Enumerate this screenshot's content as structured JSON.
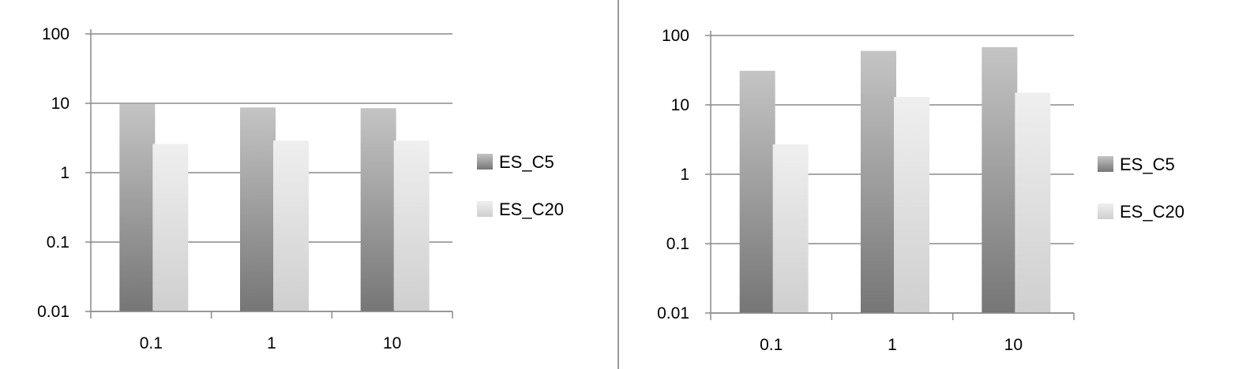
{
  "chart_data": [
    {
      "type": "bar",
      "yscale": "log",
      "ylim": [
        0.01,
        100
      ],
      "yticks": [
        "100",
        "10",
        "1",
        "0.1",
        "0.01"
      ],
      "categories": [
        "0.1",
        "1",
        "10"
      ],
      "series": [
        {
          "name": "ES_C5",
          "values": [
            9.8,
            8.7,
            8.5
          ]
        },
        {
          "name": "ES_C20",
          "values": [
            2.6,
            2.9,
            2.9
          ]
        }
      ],
      "grid": true,
      "legend": "right"
    },
    {
      "type": "bar",
      "yscale": "log",
      "ylim": [
        0.01,
        100
      ],
      "yticks": [
        "100",
        "10",
        "1",
        "0.1",
        "0.01"
      ],
      "categories": [
        "0.1",
        "1",
        "10"
      ],
      "series": [
        {
          "name": "ES_C5",
          "values": [
            31,
            60,
            68
          ]
        },
        {
          "name": "ES_C20",
          "values": [
            2.7,
            13,
            15
          ]
        }
      ],
      "grid": true,
      "legend": "right"
    }
  ],
  "colors": {
    "c5_top": "#c4c4c4",
    "c5_bottom": "#767676",
    "c20_top": "#efefef",
    "c20_bottom": "#cfcfcf",
    "grid": "#8a8a8a",
    "divider": "#9a9a9a"
  }
}
